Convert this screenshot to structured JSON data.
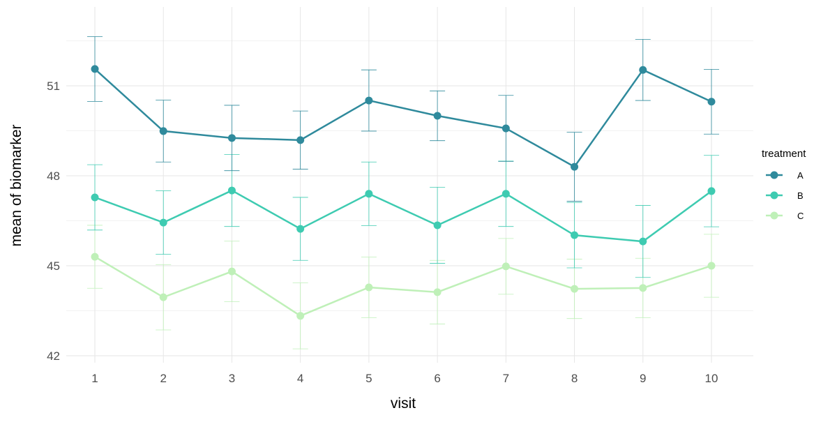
{
  "chart_data": {
    "type": "line",
    "title": "",
    "xlabel": "visit",
    "ylabel": "mean of biomarker",
    "x": [
      1,
      2,
      3,
      4,
      5,
      6,
      7,
      8,
      9,
      10
    ],
    "yticks": [
      42,
      45,
      48,
      51
    ],
    "ylim": [
      41.8,
      53.0
    ],
    "grid": true,
    "error_bars": true,
    "legend": {
      "title": "treatment",
      "position": "right"
    },
    "series": [
      {
        "name": "A",
        "color": "#2f8a9c",
        "values": [
          51.56,
          49.49,
          49.26,
          49.19,
          50.51,
          50.0,
          49.58,
          48.3,
          51.53,
          50.47
        ],
        "se": [
          1.08,
          1.03,
          1.09,
          0.97,
          1.02,
          0.83,
          1.1,
          1.15,
          1.02,
          1.08
        ]
      },
      {
        "name": "B",
        "color": "#3ecbb1",
        "values": [
          47.28,
          46.44,
          47.51,
          46.23,
          47.4,
          46.35,
          47.4,
          46.02,
          45.81,
          47.49
        ],
        "se": [
          1.09,
          1.06,
          1.2,
          1.05,
          1.06,
          1.27,
          1.09,
          1.09,
          1.2,
          1.19
        ]
      },
      {
        "name": "C",
        "color": "#bff0b8",
        "values": [
          45.3,
          43.95,
          44.81,
          43.33,
          44.28,
          44.12,
          44.98,
          44.23,
          44.26,
          45.0
        ],
        "se": [
          1.05,
          1.09,
          1.01,
          1.1,
          1.01,
          1.06,
          0.93,
          0.99,
          0.99,
          1.05
        ]
      }
    ]
  }
}
